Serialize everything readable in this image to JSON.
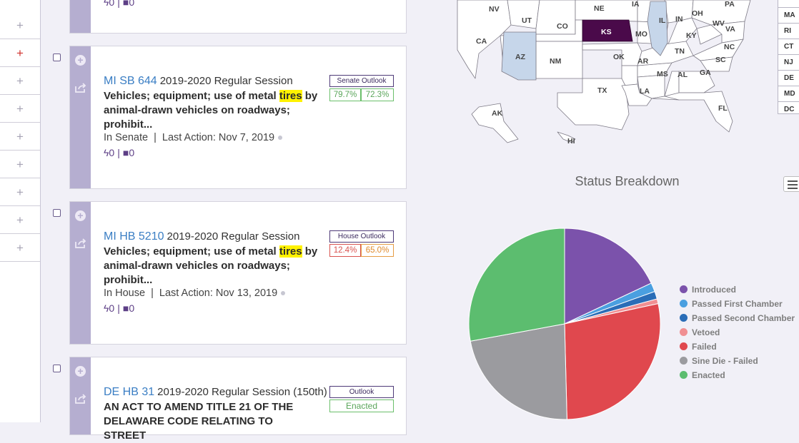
{
  "sidebar": {
    "rows": [
      "+",
      "+",
      "+",
      "+",
      "+",
      "+",
      "+",
      "+",
      "+"
    ],
    "active_color": "#d0312d"
  },
  "bills": [
    {
      "id": "MI SB 644",
      "session": "2019-2020 Regular Session",
      "desc_before": "Vehicles; equipment; use of metal ",
      "highlight": "tires",
      "desc_after": " by animal-drawn vehicles on roadways; prohibit...",
      "chamber": "In Senate",
      "sep": "|",
      "last_action": "Last Action: Nov 7, 2019",
      "count1": "0",
      "count2": "0",
      "count_sep": "|",
      "outlook_label": "Senate Outlook",
      "pct1": "79.7%",
      "pct2": "72.3%"
    },
    {
      "id": "MI HB 5210",
      "session": "2019-2020 Regular Session",
      "desc_before": "Vehicles; equipment; use of metal ",
      "highlight": "tires",
      "desc_after": " by animal-drawn vehicles on roadways; prohibit...",
      "chamber": "In House",
      "sep": "|",
      "last_action": "Last Action: Nov 13, 2019",
      "count1": "0",
      "count2": "0",
      "count_sep": "|",
      "outlook_label": "House Outlook",
      "pct1": "12.4%",
      "pct2": "65.0%"
    },
    {
      "id": "DE HB 31",
      "session": "2019-2020 Regular Session (150th)",
      "desc": "AN ACT TO AMEND TITLE 21 OF THE DELAWARE CODE RELATING TO STREET",
      "outlook_label": "Outlook",
      "outcome": "Enacted"
    }
  ],
  "top_card_counts": {
    "count1": "0",
    "count2": "0",
    "sep": "|"
  },
  "map": {
    "states": [
      "NV",
      "UT",
      "CO",
      "NE",
      "IA",
      "IL",
      "IN",
      "OH",
      "PA",
      "CA",
      "KS",
      "MO",
      "KY",
      "WV",
      "VA",
      "AZ",
      "NM",
      "OK",
      "AR",
      "TN",
      "NC",
      "SC",
      "MS",
      "AL",
      "GA",
      "TX",
      "LA",
      "FL",
      "AK",
      "HI"
    ],
    "highlight_dark": "KS",
    "highlight_light": [
      "AZ",
      "IL"
    ],
    "dark_color": "#4a0a4a",
    "light_color": "#c6d6ea",
    "legend": [
      "MA",
      "RI",
      "CT",
      "NJ",
      "DE",
      "MD",
      "DC"
    ]
  },
  "chart_data": {
    "type": "pie",
    "title": "Status Breakdown",
    "legend_position": "right",
    "series": [
      {
        "name": "Introduced",
        "value": 18.0,
        "color": "#7b52ab"
      },
      {
        "name": "Passed First Chamber",
        "value": 1.5,
        "color": "#4a9fe0"
      },
      {
        "name": "Passed Second Chamber",
        "value": 1.3,
        "color": "#2a6db7"
      },
      {
        "name": "Vetoed",
        "value": 0.8,
        "color": "#f08f92"
      },
      {
        "name": "Failed",
        "value": 28.0,
        "color": "#e0484e"
      },
      {
        "name": "Sine Die - Failed",
        "value": 22.5,
        "color": "#9b9b9f"
      },
      {
        "name": "Enacted",
        "value": 27.9,
        "color": "#5cbd6f"
      }
    ]
  }
}
